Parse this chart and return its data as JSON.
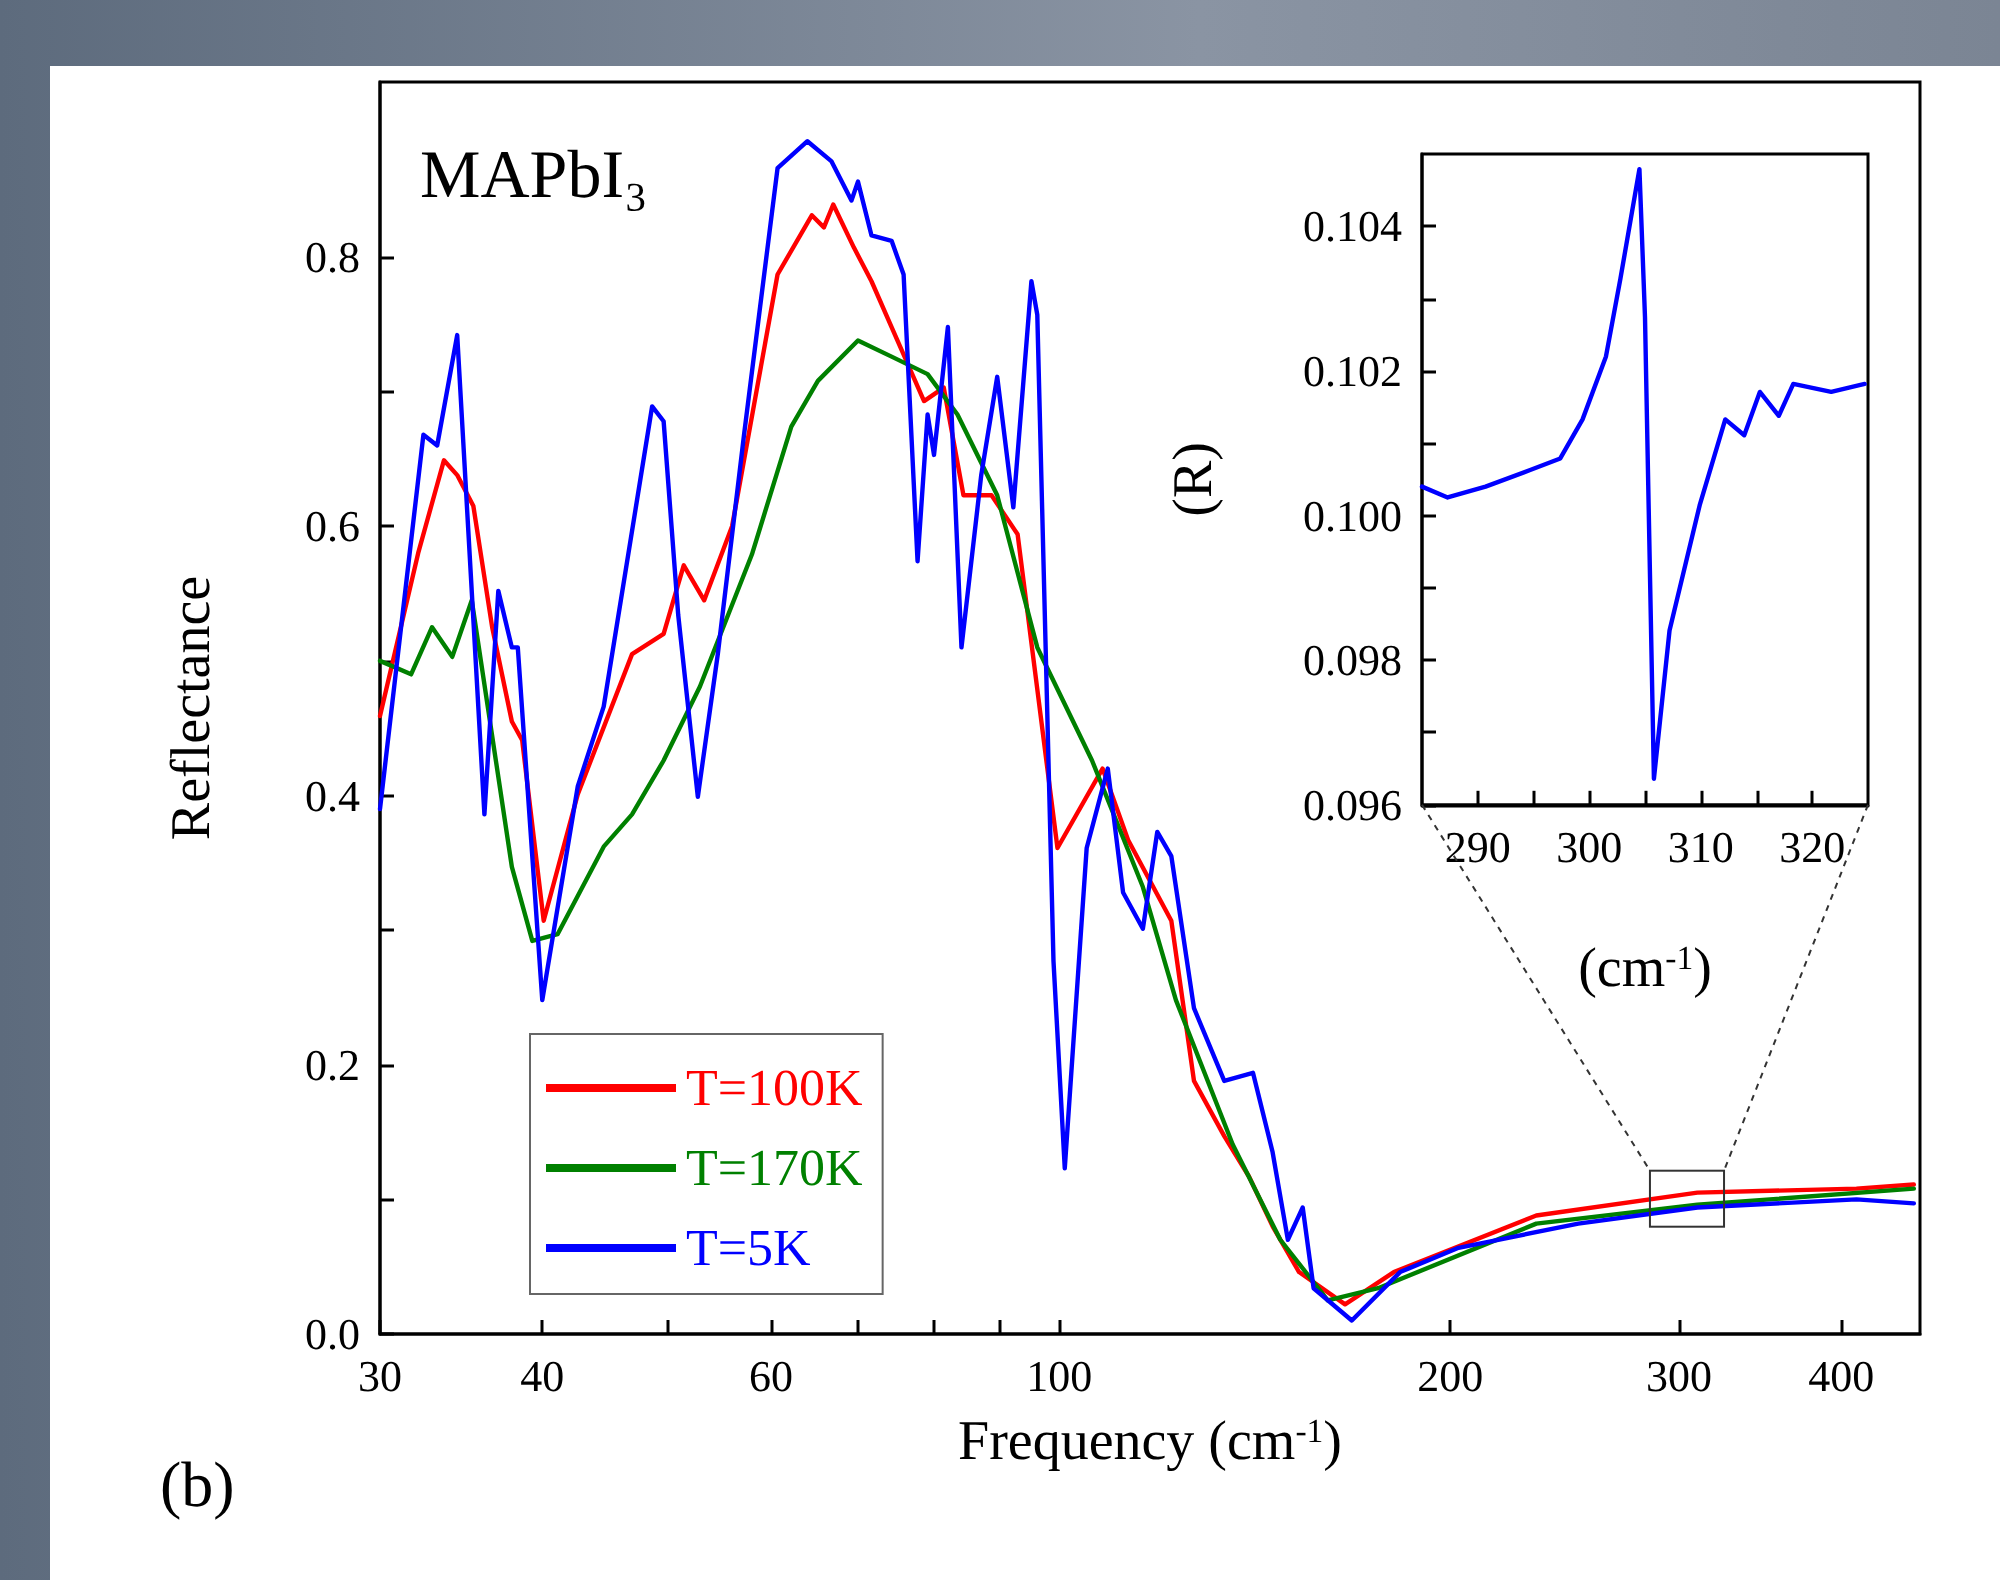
{
  "chart_data": [
    {
      "type": "line",
      "xlabel": "Frequency (cm$^{-1}$)",
      "ylabel": "Reflectance",
      "annotations": [
        "MAPbI₃",
        "(b)"
      ],
      "log": "x",
      "xlim": [
        30,
        460
      ],
      "xticks": [
        30,
        40,
        {
          "value": 50,
          "label": null
        },
        60,
        {
          "value": 70,
          "label": null
        },
        {
          "value": 80,
          "label": null
        },
        {
          "value": 90,
          "label": null
        },
        100,
        200,
        300,
        400
      ],
      "ylim": [
        0,
        0.93
      ],
      "yticks": [
        {
          "value": 0,
          "label": "0.0"
        },
        {
          "value": 0.1,
          "label": null
        },
        0.2,
        {
          "value": 0.3,
          "label": null
        },
        0.4,
        {
          "value": 0.5,
          "label": null
        },
        0.6,
        {
          "value": 0.7,
          "label": null
        },
        0.8
      ],
      "grid": false,
      "legend": "bottom left",
      "marker": "none",
      "line_style": "solid",
      "series": [
        {
          "name": "T=100K",
          "color": "#ff0000",
          "x": [
            30,
            32.1,
            33.6,
            34.4,
            35.4,
            36.6,
            37.9,
            38.6,
            40.1,
            42.6,
            46.9,
            49.6,
            51.4,
            53.3,
            56,
            60.7,
            64.5,
            65.9,
            67,
            69.5,
            71.7,
            74.3,
            78.7,
            81.5,
            84.4,
            88.7,
            92.9,
            99.7,
            108,
            113,
            122,
            127,
            134,
            140,
            146,
            153,
            166,
            181,
            233,
            310,
            411,
            455
          ],
          "values": [
            0.459,
            0.58,
            0.649,
            0.638,
            0.615,
            0.525,
            0.455,
            0.441,
            0.307,
            0.401,
            0.505,
            0.52,
            0.571,
            0.545,
            0.6,
            0.787,
            0.831,
            0.822,
            0.839,
            0.807,
            0.782,
            0.748,
            0.693,
            0.703,
            0.623,
            0.623,
            0.594,
            0.361,
            0.42,
            0.367,
            0.307,
            0.188,
            0.147,
            0.117,
            0.08,
            0.046,
            0.022,
            0.046,
            0.088,
            0.105,
            0.108,
            0.111
          ]
        },
        {
          "name": "T=170K",
          "color": "#008000",
          "x": [
            30,
            31.7,
            32.9,
            34.1,
            35.3,
            37.9,
            39.3,
            41.1,
            44.6,
            46.9,
            49.6,
            52.9,
            58,
            62.2,
            65.2,
            70,
            74.3,
            79.2,
            83.5,
            89.6,
            96.2,
            106,
            116,
            123,
            136,
            148,
            161,
            176,
            233,
            310,
            455
          ],
          "values": [
            0.5,
            0.49,
            0.525,
            0.503,
            0.545,
            0.347,
            0.292,
            0.297,
            0.362,
            0.386,
            0.426,
            0.481,
            0.579,
            0.674,
            0.708,
            0.738,
            0.726,
            0.713,
            0.683,
            0.623,
            0.51,
            0.426,
            0.332,
            0.248,
            0.141,
            0.07,
            0.025,
            0.034,
            0.082,
            0.096,
            0.108
          ]
        },
        {
          "name": "T=5K",
          "color": "#0000ff",
          "x": [
            30,
            32.4,
            33.2,
            34.4,
            36.1,
            37,
            37.9,
            38.3,
            40,
            42.6,
            44.6,
            48.6,
            49.6,
            50.9,
            52.7,
            54.6,
            57.2,
            60.7,
            64,
            66.8,
            69.2,
            70,
            71.7,
            74.3,
            75.9,
            77.8,
            79.2,
            80.1,
            82.1,
            84.1,
            87.1,
            89.6,
            92.2,
            95.2,
            96.2,
            99,
            101,
            105,
            109,
            112,
            116,
            119,
            122,
            127,
            134,
            141,
            146,
            150,
            154,
            157,
            168,
            183,
            203,
            251,
            310,
            411,
            455
          ],
          "values": [
            0.39,
            0.668,
            0.66,
            0.742,
            0.386,
            0.552,
            0.51,
            0.51,
            0.248,
            0.407,
            0.466,
            0.689,
            0.678,
            0.534,
            0.399,
            0.505,
            0.668,
            0.866,
            0.886,
            0.871,
            0.842,
            0.856,
            0.816,
            0.812,
            0.787,
            0.574,
            0.683,
            0.653,
            0.748,
            0.51,
            0.638,
            0.711,
            0.614,
            0.782,
            0.757,
            0.277,
            0.123,
            0.361,
            0.42,
            0.328,
            0.301,
            0.373,
            0.355,
            0.242,
            0.188,
            0.194,
            0.135,
            0.07,
            0.094,
            0.034,
            0.01,
            0.046,
            0.064,
            0.082,
            0.094,
            0.1,
            0.097
          ]
        }
      ]
    },
    {
      "type": "line",
      "xlabel": "(cm$^{-1}$)",
      "ylabel": "(R)",
      "xlim": [
        285,
        325
      ],
      "xticks": [
        290,
        {
          "value": 295,
          "label": null
        },
        300,
        {
          "value": 305,
          "label": null
        },
        310,
        {
          "value": 315,
          "label": null
        },
        320
      ],
      "ylim": [
        0.096,
        0.105
      ],
      "yticks": [
        0.096,
        {
          "value": 0.097,
          "label": null
        },
        0.098,
        {
          "value": 0.099,
          "label": null
        },
        {
          "value": 0.1,
          "label": "0.100"
        },
        {
          "value": 0.101,
          "label": null
        },
        0.102,
        {
          "value": 0.103,
          "label": null
        },
        0.104
      ],
      "grid": false,
      "legend": false,
      "marker": "none",
      "line_style": "solid",
      "series": [
        {
          "color": "#0000ff",
          "x": [
            285,
            287.3,
            290.7,
            294.7,
            297.4,
            299.4,
            301.5,
            302.8,
            304.5,
            305,
            305.8,
            307.2,
            309.9,
            312.2,
            313.9,
            315.3,
            317,
            318.3,
            321.7,
            324.7
          ],
          "values": [
            0.1004,
            0.10025,
            0.1004,
            0.10063,
            0.10079,
            0.10133,
            0.1022,
            0.10328,
            0.10479,
            0.10274,
            0.09636,
            0.09841,
            0.10014,
            0.10133,
            0.10111,
            0.10171,
            0.10138,
            0.10182,
            0.10171,
            0.10182
          ]
        }
      ]
    }
  ]
}
